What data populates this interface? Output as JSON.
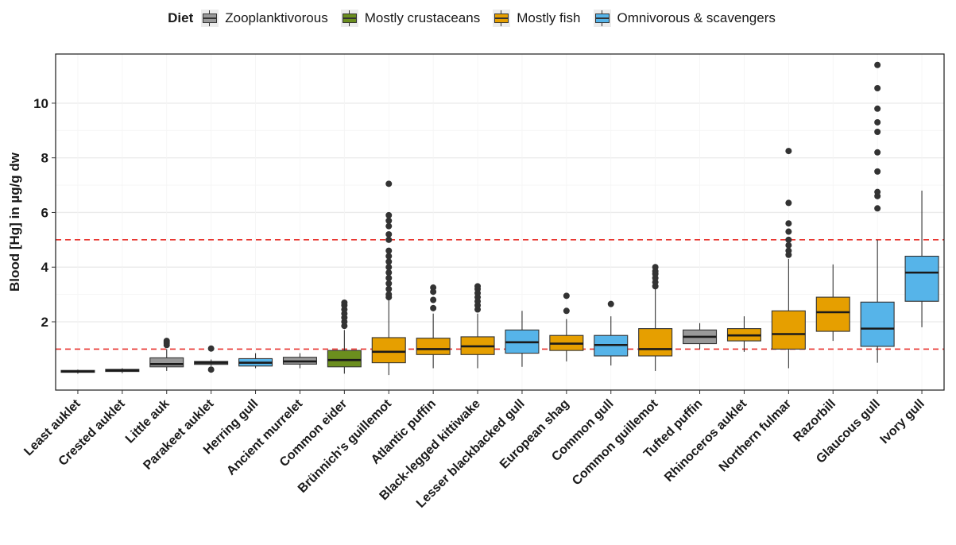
{
  "legend": {
    "title": "Diet",
    "items": [
      {
        "label": "Zooplanktivorous",
        "color": "#999999"
      },
      {
        "label": "Mostly crustaceans",
        "color": "#6b8e1e"
      },
      {
        "label": "Mostly fish",
        "color": "#e69f00"
      },
      {
        "label": "Omnivorous & scavengers",
        "color": "#56b4e9"
      }
    ]
  },
  "chart_data": {
    "type": "boxplot",
    "title": "",
    "xlabel": "",
    "ylabel": "Blood [Hg] in µg/g dw",
    "ylim": [
      -0.5,
      11.8
    ],
    "yticks": [
      2,
      4,
      6,
      8,
      10
    ],
    "grid": true,
    "legend_position": "top",
    "reference_lines": [
      {
        "y": 1,
        "color": "#e8302b",
        "style": "dashed"
      },
      {
        "y": 5,
        "color": "#e8302b",
        "style": "dashed"
      }
    ],
    "series": [
      {
        "name": "Least auklet",
        "diet": "Zooplanktivorous",
        "min": 0.1,
        "q1": 0.15,
        "median": 0.18,
        "q3": 0.22,
        "max": 0.25,
        "outliers": []
      },
      {
        "name": "Crested auklet",
        "diet": "Zooplanktivorous",
        "min": 0.12,
        "q1": 0.18,
        "median": 0.22,
        "q3": 0.26,
        "max": 0.3,
        "outliers": []
      },
      {
        "name": "Little auk",
        "diet": "Zooplanktivorous",
        "min": 0.2,
        "q1": 0.35,
        "median": 0.45,
        "q3": 0.68,
        "max": 1.0,
        "outliers": [
          1.15,
          1.22,
          1.3
        ]
      },
      {
        "name": "Parakeet auklet",
        "diet": "Zooplanktivorous",
        "min": 0.38,
        "q1": 0.44,
        "median": 0.5,
        "q3": 0.55,
        "max": 0.62,
        "outliers": [
          0.25,
          1.02
        ]
      },
      {
        "name": "Herring gull",
        "diet": "Omnivorous & scavengers",
        "min": 0.3,
        "q1": 0.38,
        "median": 0.5,
        "q3": 0.65,
        "max": 0.85,
        "outliers": []
      },
      {
        "name": "Ancient murrelet",
        "diet": "Zooplanktivorous",
        "min": 0.3,
        "q1": 0.45,
        "median": 0.55,
        "q3": 0.7,
        "max": 0.85,
        "outliers": []
      },
      {
        "name": "Common eider",
        "diet": "Mostly crustaceans",
        "min": 0.1,
        "q1": 0.35,
        "median": 0.6,
        "q3": 0.95,
        "max": 1.7,
        "outliers": [
          1.85,
          2.0,
          2.15,
          2.3,
          2.45,
          2.6,
          2.7
        ]
      },
      {
        "name": "Brünnich's guillemot",
        "diet": "Mostly fish",
        "min": 0.05,
        "q1": 0.5,
        "median": 0.9,
        "q3": 1.42,
        "max": 2.8,
        "outliers": [
          2.9,
          3.0,
          3.2,
          3.4,
          3.6,
          3.8,
          4.0,
          4.2,
          4.4,
          4.6,
          5.0,
          5.2,
          5.5,
          5.7,
          5.9,
          7.05
        ]
      },
      {
        "name": "Atlantic puffin",
        "diet": "Mostly fish",
        "min": 0.3,
        "q1": 0.8,
        "median": 1.0,
        "q3": 1.4,
        "max": 2.3,
        "outliers": [
          2.5,
          2.8,
          3.1,
          3.25
        ]
      },
      {
        "name": "Black-legged kittiwake",
        "diet": "Mostly fish",
        "min": 0.3,
        "q1": 0.8,
        "median": 1.1,
        "q3": 1.45,
        "max": 2.3,
        "outliers": [
          2.45,
          2.6,
          2.75,
          2.9,
          3.05,
          3.2,
          3.3
        ]
      },
      {
        "name": "Lesser blackbacked gull",
        "diet": "Omnivorous & scavengers",
        "min": 0.35,
        "q1": 0.85,
        "median": 1.25,
        "q3": 1.7,
        "max": 2.4,
        "outliers": []
      },
      {
        "name": "European shag",
        "diet": "Mostly fish",
        "min": 0.55,
        "q1": 0.95,
        "median": 1.2,
        "q3": 1.5,
        "max": 2.1,
        "outliers": [
          2.4,
          2.95
        ]
      },
      {
        "name": "Common gull",
        "diet": "Omnivorous & scavengers",
        "min": 0.4,
        "q1": 0.75,
        "median": 1.15,
        "q3": 1.5,
        "max": 2.2,
        "outliers": [
          2.65
        ]
      },
      {
        "name": "Common guillemot",
        "diet": "Mostly fish",
        "min": 0.2,
        "q1": 0.75,
        "median": 1.0,
        "q3": 1.75,
        "max": 3.2,
        "outliers": [
          3.3,
          3.45,
          3.6,
          3.75,
          3.85,
          4.0
        ]
      },
      {
        "name": "Tufted puffin",
        "diet": "Zooplanktivorous",
        "min": 1.0,
        "q1": 1.2,
        "median": 1.45,
        "q3": 1.7,
        "max": 1.95,
        "outliers": []
      },
      {
        "name": "Rhinoceros auklet",
        "diet": "Mostly fish",
        "min": 0.9,
        "q1": 1.3,
        "median": 1.5,
        "q3": 1.75,
        "max": 2.2,
        "outliers": []
      },
      {
        "name": "Northern fulmar",
        "diet": "Mostly fish",
        "min": 0.3,
        "q1": 1.0,
        "median": 1.55,
        "q3": 2.4,
        "max": 4.3,
        "outliers": [
          4.45,
          4.6,
          4.8,
          5.0,
          5.3,
          5.6,
          6.35,
          8.25
        ]
      },
      {
        "name": "Razorbill",
        "diet": "Mostly fish",
        "min": 1.3,
        "q1": 1.65,
        "median": 2.35,
        "q3": 2.9,
        "max": 4.1,
        "outliers": []
      },
      {
        "name": "Glaucous gull",
        "diet": "Omnivorous & scavengers",
        "min": 0.5,
        "q1": 1.1,
        "median": 1.75,
        "q3": 2.72,
        "max": 5.0,
        "outliers": [
          6.15,
          6.6,
          6.75,
          7.5,
          8.2,
          8.95,
          9.3,
          9.8,
          10.55,
          11.4
        ]
      },
      {
        "name": "Ivory gull",
        "diet": "Omnivorous & scavengers",
        "min": 1.8,
        "q1": 2.75,
        "median": 3.8,
        "q3": 4.4,
        "max": 6.8,
        "outliers": []
      }
    ]
  }
}
